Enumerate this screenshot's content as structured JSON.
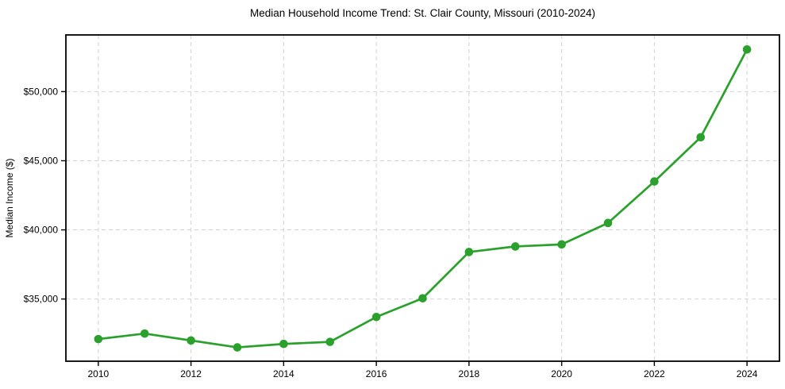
{
  "page": {
    "background": "#ffffff"
  },
  "chart_data": {
    "type": "line",
    "title": "Median Household Income Trend: St. Clair County, Missouri (2010-2024)",
    "xlabel": "",
    "ylabel": "Median Income ($)",
    "x": [
      2010,
      2011,
      2012,
      2013,
      2014,
      2015,
      2016,
      2017,
      2018,
      2019,
      2020,
      2021,
      2022,
      2023,
      2024
    ],
    "series": [
      {
        "name": "Median household income",
        "values": [
          32100,
          32500,
          32000,
          31500,
          31750,
          31900,
          33700,
          35050,
          38400,
          38800,
          38950,
          40500,
          43500,
          46700,
          53050
        ],
        "color": "#2ca02c",
        "marker": "circle",
        "line_width": 2.7,
        "marker_radius": 5.3
      }
    ],
    "xlim": [
      2009.3,
      2024.7
    ],
    "ylim": [
      30500,
      54100
    ],
    "x_ticks": [
      2010,
      2012,
      2014,
      2016,
      2018,
      2020,
      2022,
      2024
    ],
    "x_tick_labels": [
      "2010",
      "2012",
      "2014",
      "2016",
      "2018",
      "2020",
      "2022",
      "2024"
    ],
    "y_ticks": [
      35000,
      40000,
      45000,
      50000
    ],
    "y_tick_labels": [
      "$35,000",
      "$40,000",
      "$45,000",
      "$50,000"
    ],
    "grid": true,
    "grid_style": "dashed",
    "legend_position": "none",
    "colors": {
      "line": "#2ca02c",
      "grid": "#d2d2d2",
      "spine": "#000000",
      "tick": "#000000",
      "text": "#000000",
      "background": "#ffffff"
    }
  }
}
